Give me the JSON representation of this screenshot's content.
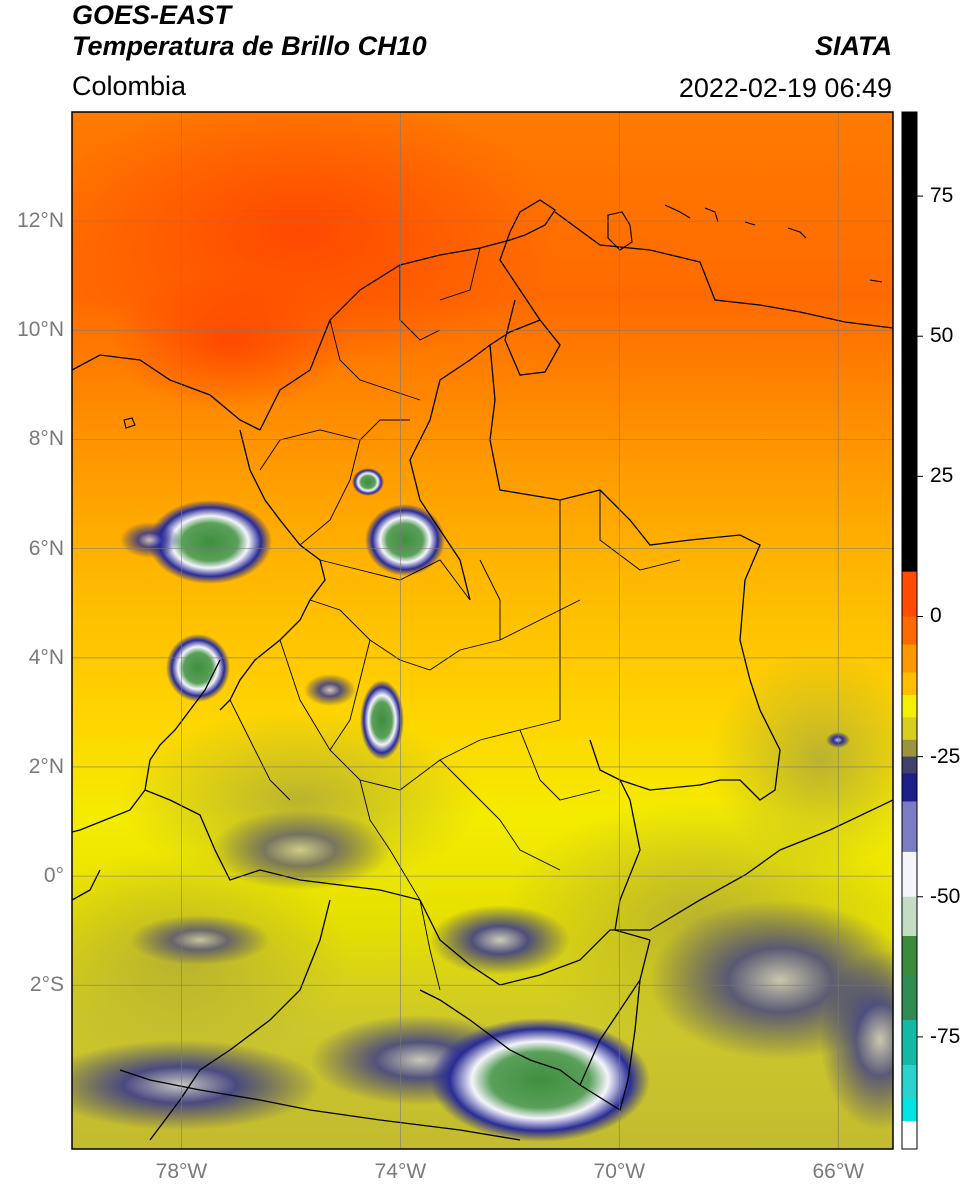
{
  "header": {
    "satellite": "GOES-EAST",
    "product": "Temperatura de Brillo CH10",
    "region": "Colombia",
    "source": "SIATA",
    "datetime": "2022-02-19 06:49"
  },
  "map": {
    "lat_ticks": [
      {
        "label": "12°N",
        "value": 12
      },
      {
        "label": "10°N",
        "value": 10
      },
      {
        "label": "8°N",
        "value": 8
      },
      {
        "label": "6°N",
        "value": 6
      },
      {
        "label": "4°N",
        "value": 4
      },
      {
        "label": "2°N",
        "value": 2
      },
      {
        "label": "0°",
        "value": 0
      },
      {
        "label": "2°S",
        "value": -2
      }
    ],
    "lon_ticks": [
      {
        "label": "78°W",
        "value": -78
      },
      {
        "label": "74°W",
        "value": -74
      },
      {
        "label": "70°W",
        "value": -70
      },
      {
        "label": "66°W",
        "value": -66
      }
    ],
    "extent": {
      "lon_min": -80,
      "lon_max": -65,
      "lat_min": -5,
      "lat_max": 14
    },
    "grid": true
  },
  "colorbar": {
    "ticks": [
      {
        "label": "75",
        "value": 75
      },
      {
        "label": "50",
        "value": 50
      },
      {
        "label": "25",
        "value": 25
      },
      {
        "label": "0",
        "value": 0
      },
      {
        "label": "-25",
        "value": -25
      },
      {
        "label": "-50",
        "value": -50
      },
      {
        "label": "-75",
        "value": -75
      }
    ],
    "range": [
      -95,
      90
    ]
  },
  "colors": {
    "warm_red": "#ff4c00",
    "orange": "#ff9800",
    "yellow": "#f5f000",
    "olive": "#c8c230",
    "navy": "#1c1e8a",
    "white": "#f4f4fb",
    "green": "#3a8a3a",
    "teal": "#14b9a4",
    "cyan": "#00e4e4",
    "black": "#000000"
  }
}
